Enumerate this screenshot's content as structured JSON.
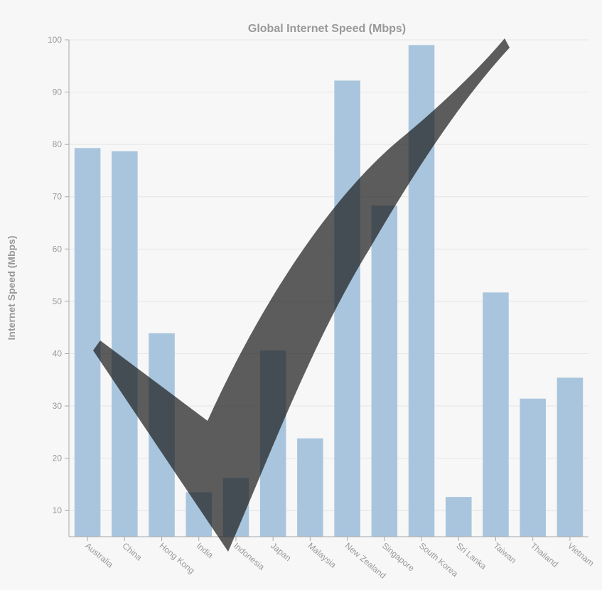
{
  "chart_data": {
    "type": "bar",
    "title": "Global Internet Speed (Mbps)",
    "xlabel": "",
    "ylabel": "Internet Speed (Mbps)",
    "ylim": [
      5,
      100
    ],
    "yticks": [
      10,
      20,
      30,
      40,
      50,
      60,
      70,
      80,
      90,
      100
    ],
    "grid": true,
    "categories": [
      "Australia",
      "China",
      "Hong Kong",
      "India",
      "Indonesia",
      "Japan",
      "Malaysia",
      "New Zealand",
      "Singapore",
      "South Korea",
      "Sri Lanka",
      "Taiwan",
      "Thailand",
      "Vietnam"
    ],
    "values": [
      79.3,
      78.7,
      43.9,
      13.5,
      16.2,
      40.6,
      23.8,
      92.2,
      68.3,
      99.0,
      12.6,
      51.7,
      31.4,
      35.4
    ],
    "bar_color": "#a9c5de",
    "overlay": {
      "type": "checkmark",
      "color": "#1a1a1a",
      "opacity": 0.7
    }
  }
}
